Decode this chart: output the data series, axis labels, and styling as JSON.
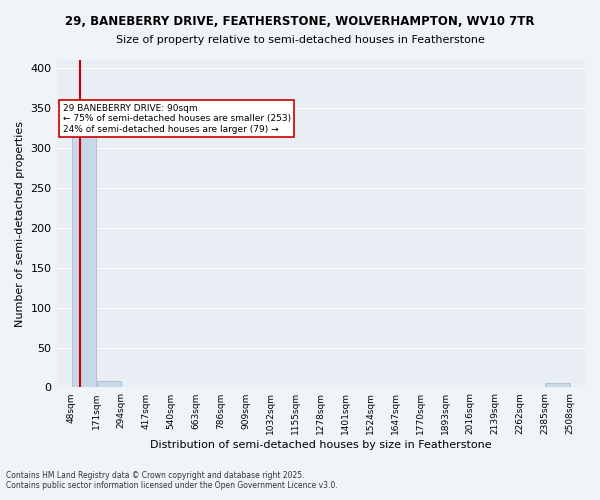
{
  "title1": "29, BANEBERRY DRIVE, FEATHERSTONE, WOLVERHAMPTON, WV10 7TR",
  "title2": "Size of property relative to semi-detached houses in Featherstone",
  "xlabel": "Distribution of semi-detached houses by size in Featherstone",
  "ylabel": "Number of semi-detached properties",
  "bin_edges": [
    48,
    171,
    294,
    417,
    540,
    663,
    786,
    909,
    1032,
    1155,
    1278,
    1401,
    1524,
    1647,
    1770,
    1893,
    2016,
    2139,
    2262,
    2385,
    2508
  ],
  "bar_heights": [
    335,
    8,
    0,
    0,
    0,
    0,
    0,
    0,
    0,
    0,
    0,
    0,
    0,
    0,
    0,
    0,
    0,
    0,
    0,
    5
  ],
  "bar_color": "#c8d8e8",
  "bar_edgecolor": "#a0b8cc",
  "property_size": 90,
  "property_label": "29 BANEBERRY DRIVE: 90sqm",
  "pct_smaller": 75,
  "n_smaller": 253,
  "pct_larger": 24,
  "n_larger": 79,
  "annotation_line1": "29 BANEBERRY DRIVE: 90sqm",
  "annotation_line2": "← 75% of semi-detached houses are smaller (253)",
  "annotation_line3": "24% of semi-detached houses are larger (79) →",
  "marker_color": "#cc0000",
  "ylim": [
    0,
    410
  ],
  "yticks": [
    0,
    50,
    100,
    150,
    200,
    250,
    300,
    350,
    400
  ],
  "bg_color": "#e8eef4",
  "grid_color": "#ffffff",
  "footer1": "Contains HM Land Registry data © Crown copyright and database right 2025.",
  "footer2": "Contains public sector information licensed under the Open Government Licence v3.0."
}
